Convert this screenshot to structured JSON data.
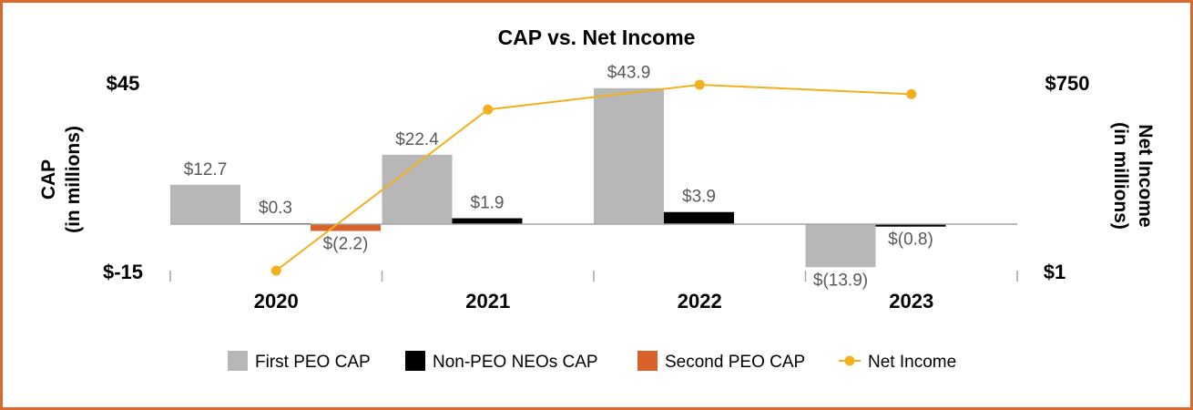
{
  "chart_data": {
    "type": "bar",
    "title": "CAP vs. Net Income",
    "categories": [
      "2020",
      "2021",
      "2022",
      "2023"
    ],
    "y_left": {
      "label_line1": "CAP",
      "label_line2": "(in millions)",
      "min": -15,
      "max": 45,
      "min_label": "$-15",
      "max_label": "$45"
    },
    "y_right": {
      "label_line1": "Net Income",
      "label_line2": "(in millions)",
      "min": 1,
      "max": 750,
      "min_label": "$1",
      "max_label": "$750"
    },
    "series": [
      {
        "name": "First PEO CAP",
        "kind": "bar",
        "color": "#b7b7b7",
        "values": [
          12.7,
          22.4,
          43.9,
          -13.9
        ],
        "labels": [
          "$12.7",
          "$22.4",
          "$43.9",
          "$(13.9)"
        ]
      },
      {
        "name": "Second PEO CAP",
        "kind": "bar",
        "color": "#d9622b",
        "values": [
          -2.2,
          null,
          null,
          null
        ],
        "labels": [
          "$(2.2)",
          "",
          "",
          ""
        ]
      },
      {
        "name": "Non-PEO NEOs CAP",
        "kind": "bar",
        "color": "#000000",
        "values": [
          0.3,
          1.9,
          3.9,
          -0.8
        ],
        "labels": [
          "$0.3",
          "$1.9",
          "$3.9",
          "$(0.8)"
        ]
      },
      {
        "name": "Net Income",
        "kind": "line",
        "color": "#f2b01e",
        "axis": "right",
        "values": [
          1,
          650,
          750,
          712
        ]
      }
    ],
    "legend": [
      "First PEO CAP",
      "Non-PEO NEOs CAP",
      "Second PEO CAP",
      "Net Income"
    ],
    "legend_position": "bottom"
  }
}
